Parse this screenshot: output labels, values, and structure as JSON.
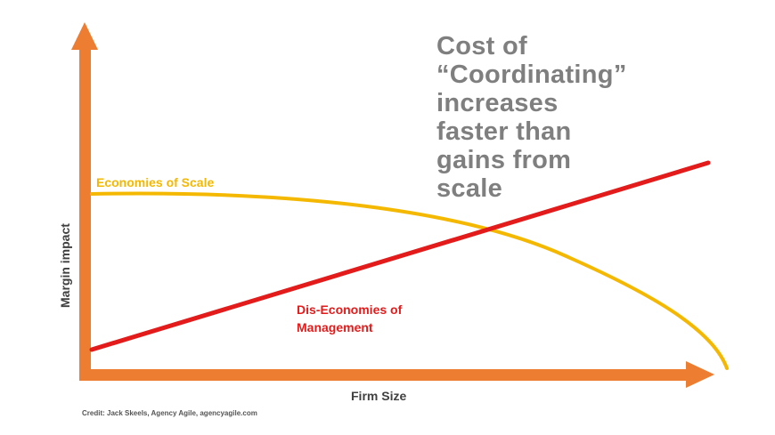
{
  "headline": {
    "lines": [
      "Cost of",
      "“Coordinating”",
      "increases",
      "faster than",
      "gains from",
      "scale"
    ]
  },
  "axes": {
    "y_label": "Margin impact",
    "x_label": "Firm Size"
  },
  "curves": {
    "economies": {
      "label": "Economies of Scale",
      "color": "#f5b800",
      "shape": "flat-then-falling"
    },
    "diseconomies": {
      "label_line1": "Dis-Economies of",
      "label_line2": "Management",
      "color": "#e31b1b",
      "shape": "rising-straight"
    }
  },
  "colors": {
    "axis": "#ed7d31",
    "headline": "#7f7f7f"
  },
  "credit": "Credit: Jack Skeels, Agency Agile, agencyagile.com"
}
